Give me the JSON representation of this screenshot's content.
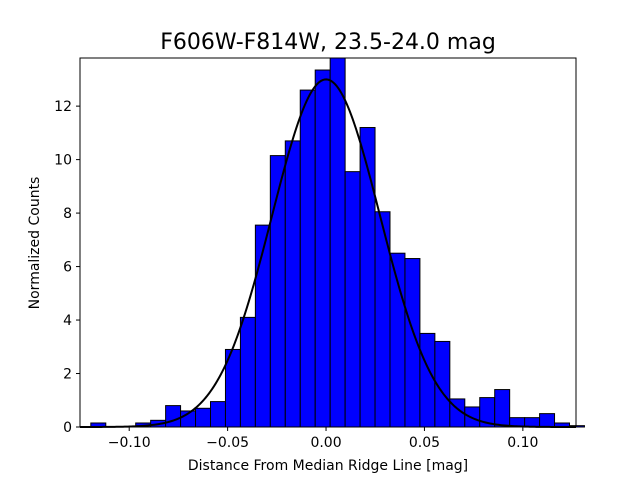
{
  "chart_data": {
    "type": "bar",
    "title": "F606W-F814W, 23.5-24.0 mag",
    "xlabel": "Distance From Median Ridge Line [mag]",
    "ylabel": "Normalized Counts",
    "xlim": [
      -0.125,
      0.127
    ],
    "ylim": [
      0,
      13.8
    ],
    "grid": false,
    "bar_color": "#0000ff",
    "edge_color": "#000000",
    "curve_color": "#000000",
    "x_ticks": [
      {
        "value": -0.1,
        "label": "−0.10"
      },
      {
        "value": -0.05,
        "label": "−0.05"
      },
      {
        "value": 0.0,
        "label": "0.00"
      },
      {
        "value": 0.05,
        "label": "0.05"
      },
      {
        "value": 0.1,
        "label": "0.10"
      }
    ],
    "y_ticks": [
      {
        "value": 0,
        "label": "0"
      },
      {
        "value": 2,
        "label": "2"
      },
      {
        "value": 4,
        "label": "4"
      },
      {
        "value": 6,
        "label": "6"
      },
      {
        "value": 8,
        "label": "8"
      },
      {
        "value": 10,
        "label": "10"
      },
      {
        "value": 12,
        "label": "12"
      }
    ],
    "bins": {
      "start": -0.1195,
      "width": 0.0076,
      "values": [
        0.15,
        0.0,
        0.0,
        0.15,
        0.25,
        0.8,
        0.6,
        0.7,
        0.95,
        2.9,
        4.1,
        7.55,
        10.15,
        10.7,
        12.6,
        13.35,
        13.8,
        9.55,
        11.2,
        8.05,
        6.5,
        6.3,
        3.5,
        3.2,
        1.05,
        0.75,
        1.1,
        1.4,
        0.35,
        0.35,
        0.5,
        0.15,
        0.05
      ]
    },
    "gaussian_fit": {
      "amplitude": 13.0,
      "mean": 0.0,
      "sigma": 0.0275
    }
  }
}
